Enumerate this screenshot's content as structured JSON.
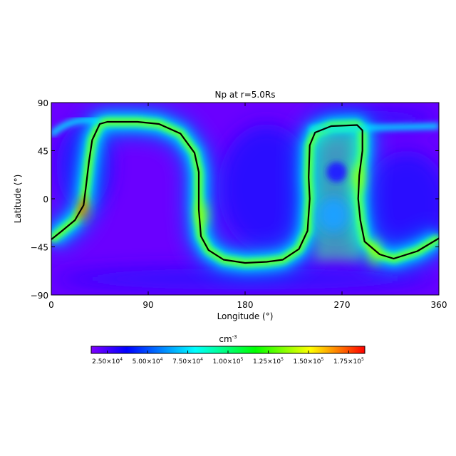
{
  "chart_data": {
    "type": "heatmap",
    "title": "Np at r=5.0Rs",
    "xlabel": "Longitude (°)",
    "ylabel": "Latitude (°)",
    "xlim": [
      0,
      360
    ],
    "ylim": [
      -90,
      90
    ],
    "xticks": [
      "0",
      "90",
      "180",
      "270",
      "360"
    ],
    "xtick_values": [
      0,
      90,
      180,
      270,
      360
    ],
    "yticks": [
      "90",
      "45",
      "0",
      "−45",
      "−90"
    ],
    "ytick_values": [
      90,
      45,
      0,
      -45,
      -90
    ],
    "grid": false,
    "colormap": [
      "#7f00ff",
      "#0000ff",
      "#00ffff",
      "#00ff00",
      "#ffff00",
      "#ff0000"
    ],
    "colorbar": {
      "label": "cm",
      "label_exponent": "-3",
      "range": [
        15000,
        185000
      ],
      "placement": "bottom",
      "ticks": [
        {
          "value": 25000,
          "mantissa": "2.50×10",
          "exp": "4"
        },
        {
          "value": 50000,
          "mantissa": "5.00×10",
          "exp": "4"
        },
        {
          "value": 75000,
          "mantissa": "7.50×10",
          "exp": "4"
        },
        {
          "value": 100000,
          "mantissa": "1.00×10",
          "exp": "5"
        },
        {
          "value": 125000,
          "mantissa": "1.25×10",
          "exp": "5"
        },
        {
          "value": 150000,
          "mantissa": "1.50×10",
          "exp": "5"
        },
        {
          "value": 175000,
          "mantissa": "1.75×10",
          "exp": "5"
        }
      ]
    },
    "contour": {
      "color": "#000000",
      "points": [
        [
          0,
          -38
        ],
        [
          10,
          -30
        ],
        [
          22,
          -20
        ],
        [
          30,
          -6
        ],
        [
          32,
          10
        ],
        [
          35,
          35
        ],
        [
          38,
          55
        ],
        [
          45,
          70
        ],
        [
          52,
          72
        ],
        [
          80,
          72
        ],
        [
          100,
          70
        ],
        [
          120,
          61
        ],
        [
          133,
          43
        ],
        [
          137,
          25
        ],
        [
          137,
          -10
        ],
        [
          139,
          -35
        ],
        [
          146,
          -48
        ],
        [
          160,
          -57
        ],
        [
          180,
          -60
        ],
        [
          200,
          -59
        ],
        [
          215,
          -57
        ],
        [
          230,
          -47
        ],
        [
          238,
          -30
        ],
        [
          240,
          0
        ],
        [
          239,
          20
        ],
        [
          240,
          50
        ],
        [
          245,
          62
        ],
        [
          260,
          68
        ],
        [
          284,
          69
        ],
        [
          289,
          64
        ],
        [
          289,
          45
        ],
        [
          286,
          22
        ],
        [
          285,
          0
        ],
        [
          287,
          -20
        ],
        [
          291,
          -40
        ],
        [
          305,
          -52
        ],
        [
          318,
          -56
        ],
        [
          340,
          -49
        ],
        [
          360,
          -37
        ]
      ]
    },
    "background_level": 20000,
    "enhanced_band_level": 100000,
    "peak_regions": [
      {
        "lon": 30,
        "lat": -10,
        "level": 175000
      },
      {
        "lon": 285,
        "lat": 20,
        "level": 140000
      },
      {
        "lon": 140,
        "lat": -15,
        "level": 140000
      },
      {
        "lon": 300,
        "lat": -50,
        "level": 140000
      }
    ]
  }
}
